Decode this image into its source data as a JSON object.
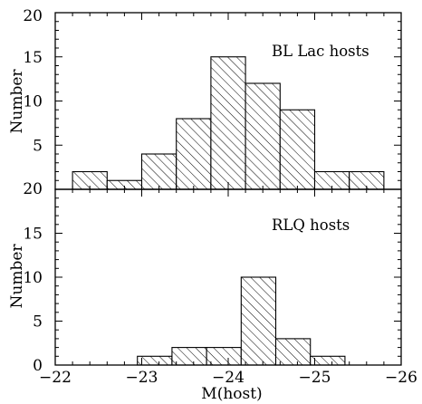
{
  "chart_data": [
    {
      "type": "bar",
      "annotation": "BL Lac hosts",
      "ylabel": "Number",
      "xlim": [
        -22,
        -26
      ],
      "ylim": [
        0,
        20
      ],
      "ytick_labels": [
        "20",
        "15",
        "10",
        "5"
      ],
      "bin_width": 0.4,
      "bins": [
        {
          "left": -22.2,
          "value": 2
        },
        {
          "left": -22.6,
          "value": 1
        },
        {
          "left": -23.0,
          "value": 4
        },
        {
          "left": -23.4,
          "value": 8
        },
        {
          "left": -23.8,
          "value": 15
        },
        {
          "left": -24.2,
          "value": 12
        },
        {
          "left": -24.6,
          "value": 9
        },
        {
          "left": -25.0,
          "value": 2
        },
        {
          "left": -25.4,
          "value": 2
        }
      ]
    },
    {
      "type": "bar",
      "annotation": "RLQ hosts",
      "ylabel": "Number",
      "xlabel": "M(host)",
      "xlim": [
        -22,
        -26
      ],
      "ylim": [
        0,
        20
      ],
      "ytick_labels": [
        "20",
        "15",
        "10",
        "5",
        "0"
      ],
      "xtick_labels": [
        "−22",
        "−23",
        "−24",
        "−25",
        "−26"
      ],
      "xticks": [
        -22,
        -23,
        -24,
        -25,
        -26
      ],
      "bin_width": 0.4,
      "bins": [
        {
          "left": -22.95,
          "value": 1
        },
        {
          "left": -23.35,
          "value": 2
        },
        {
          "left": -23.75,
          "value": 2
        },
        {
          "left": -24.15,
          "value": 10
        },
        {
          "left": -24.55,
          "value": 3
        },
        {
          "left": -24.95,
          "value": 1
        }
      ]
    }
  ]
}
